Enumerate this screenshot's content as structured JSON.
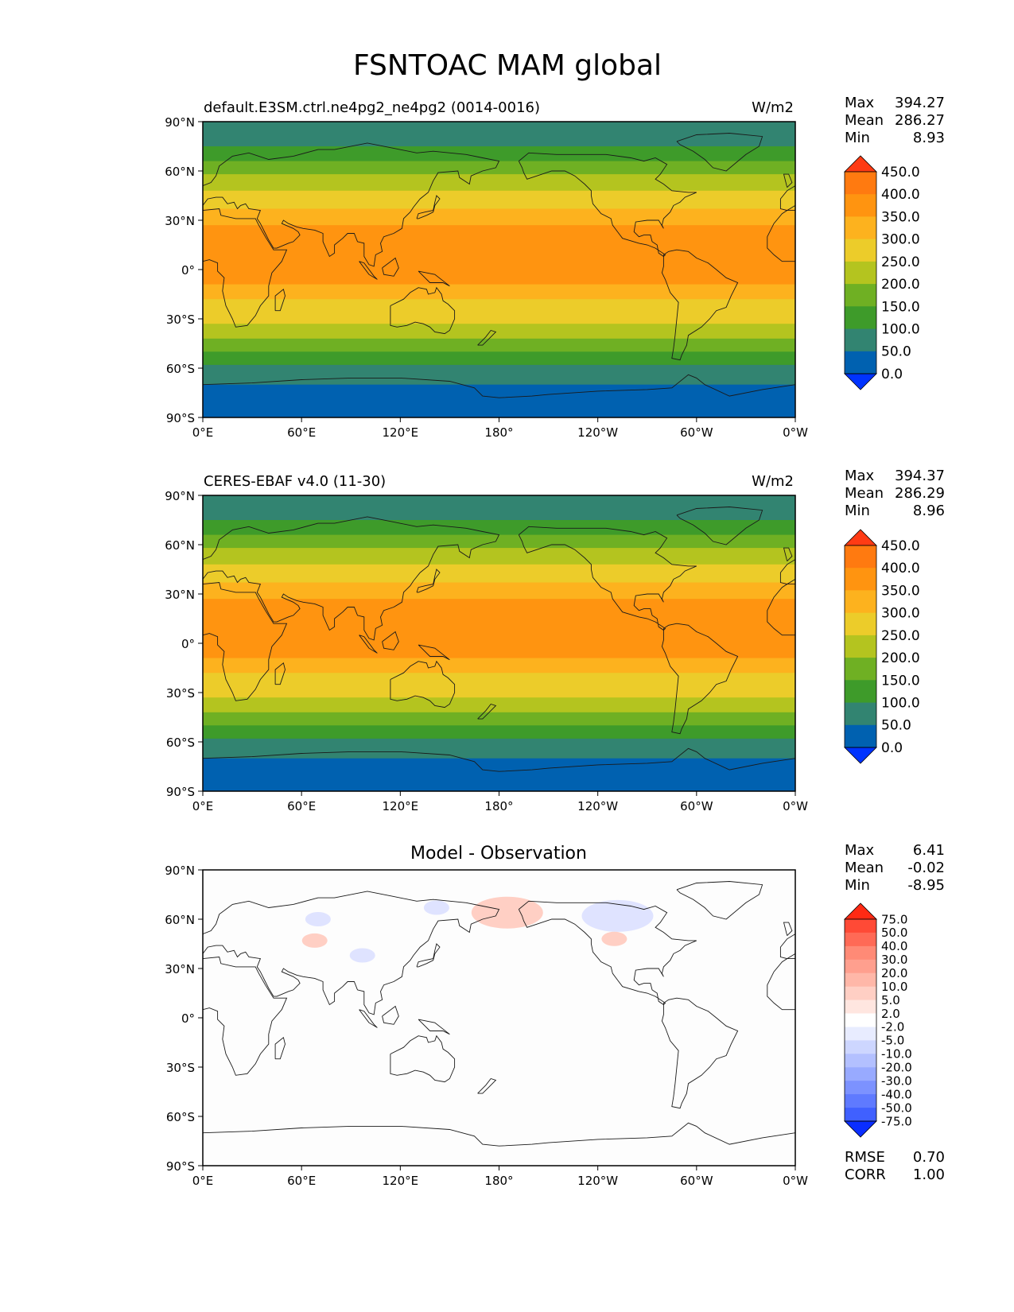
{
  "title": "FSNTOAC MAM global",
  "lat_labels": [
    "90°N",
    "60°N",
    "30°N",
    "0°",
    "30°S",
    "60°S",
    "90°S"
  ],
  "lon_labels": [
    "0°E",
    "60°E",
    "120°E",
    "180°",
    "120°W",
    "60°W",
    "0°W"
  ],
  "panels": [
    {
      "id": "model",
      "left_title": "default.E3SM.ctrl.ne4pg2_ne4pg2 (0014-0016)",
      "center_title": "",
      "units": "W/m2",
      "stats": [
        {
          "label": "Max",
          "value": "394.27"
        },
        {
          "label": "Mean",
          "value": "286.27"
        },
        {
          "label": "Min",
          "value": "8.93"
        }
      ],
      "colorbar": {
        "tick_labels": [
          "450.0",
          "400.0",
          "350.0",
          "300.0",
          "250.0",
          "200.0",
          "150.0",
          "100.0",
          "50.0",
          "0.0"
        ],
        "colors_top_to_bottom": [
          "#ff3b14",
          "#ff7a10",
          "#ff9410",
          "#fdb21e",
          "#eccc2a",
          "#b4c41f",
          "#6fb023",
          "#3e9b2a",
          "#328471",
          "#0061b0",
          "#0033ff"
        ]
      }
    },
    {
      "id": "observation",
      "left_title": "CERES-EBAF v4.0 (11-30)",
      "center_title": "",
      "units": "W/m2",
      "stats": [
        {
          "label": "Max",
          "value": "394.37"
        },
        {
          "label": "Mean",
          "value": "286.29"
        },
        {
          "label": "Min",
          "value": "8.96"
        }
      ],
      "colorbar": {
        "tick_labels": [
          "450.0",
          "400.0",
          "350.0",
          "300.0",
          "250.0",
          "200.0",
          "150.0",
          "100.0",
          "50.0",
          "0.0"
        ],
        "colors_top_to_bottom": [
          "#ff3b14",
          "#ff7a10",
          "#ff9410",
          "#fdb21e",
          "#eccc2a",
          "#b4c41f",
          "#6fb023",
          "#3e9b2a",
          "#328471",
          "#0061b0",
          "#0033ff"
        ]
      }
    },
    {
      "id": "difference",
      "left_title": "",
      "center_title": "Model - Observation",
      "units": "",
      "stats": [
        {
          "label": "Max",
          "value": "6.41"
        },
        {
          "label": "Mean",
          "value": "-0.02"
        },
        {
          "label": "Min",
          "value": "-8.95"
        }
      ],
      "colorbar": {
        "tick_labels": [
          "75.0",
          "50.0",
          "40.0",
          "30.0",
          "20.0",
          "10.0",
          "5.0",
          "2.0",
          "-2.0",
          "-5.0",
          "-10.0",
          "-20.0",
          "-30.0",
          "-40.0",
          "-50.0",
          "-75.0"
        ],
        "colors_top_to_bottom": [
          "#ff2a14",
          "#ff4a36",
          "#ff6a56",
          "#ff8a76",
          "#ff9f8e",
          "#ffb7a8",
          "#ffcfc4",
          "#ffe6e0",
          "#ffffff",
          "#e8ecff",
          "#cdd6ff",
          "#b3c0ff",
          "#98aaff",
          "#7c92ff",
          "#5f7aff",
          "#4060ff",
          "#0a2eff"
        ]
      },
      "footer_stats": [
        {
          "label": "RMSE",
          "value": "0.70"
        },
        {
          "label": "CORR",
          "value": "1.00"
        }
      ]
    }
  ],
  "chart_data": {
    "type": "heatmap",
    "title": "FSNTOAC MAM global",
    "units": "W/m2",
    "xlim": [
      0,
      360
    ],
    "ylim": [
      -90,
      90
    ],
    "lat_bands_model_obs": [
      {
        "lat_from": 90,
        "lat_to": 75,
        "value_range": [
          50,
          100
        ]
      },
      {
        "lat_from": 75,
        "lat_to": 66,
        "value_range": [
          100,
          150
        ]
      },
      {
        "lat_from": 66,
        "lat_to": 58,
        "value_range": [
          150,
          200
        ]
      },
      {
        "lat_from": 58,
        "lat_to": 48,
        "value_range": [
          200,
          250
        ]
      },
      {
        "lat_from": 48,
        "lat_to": 37,
        "value_range": [
          250,
          300
        ]
      },
      {
        "lat_from": 37,
        "lat_to": 27,
        "value_range": [
          300,
          350
        ]
      },
      {
        "lat_from": 27,
        "lat_to": -9,
        "value_range": [
          350,
          400
        ]
      },
      {
        "lat_from": -9,
        "lat_to": -18,
        "value_range": [
          300,
          350
        ]
      },
      {
        "lat_from": -18,
        "lat_to": -33,
        "value_range": [
          250,
          300
        ]
      },
      {
        "lat_from": -33,
        "lat_to": -42,
        "value_range": [
          200,
          250
        ]
      },
      {
        "lat_from": -42,
        "lat_to": -50,
        "value_range": [
          150,
          200
        ]
      },
      {
        "lat_from": -50,
        "lat_to": -58,
        "value_range": [
          100,
          150
        ]
      },
      {
        "lat_from": -58,
        "lat_to": -70,
        "value_range": [
          50,
          100
        ]
      },
      {
        "lat_from": -70,
        "lat_to": -90,
        "value_range": [
          0,
          50
        ]
      }
    ],
    "difference_features": [
      {
        "lon": 185,
        "lat": 64,
        "value_range": [
          2,
          5
        ]
      },
      {
        "lon": 252,
        "lat": 62,
        "value_range": [
          -5,
          -2
        ]
      },
      {
        "lon": 70,
        "lat": 60,
        "value_range": [
          -5,
          -2
        ]
      },
      {
        "lon": 142,
        "lat": 67,
        "value_range": [
          -5,
          -2
        ]
      },
      {
        "lon": 68,
        "lat": 47,
        "value_range": [
          2,
          5
        ]
      },
      {
        "lon": 250,
        "lat": 48,
        "value_range": [
          2,
          5
        ]
      },
      {
        "lon": 97,
        "lat": 38,
        "value_range": [
          -5,
          -2
        ]
      }
    ]
  }
}
